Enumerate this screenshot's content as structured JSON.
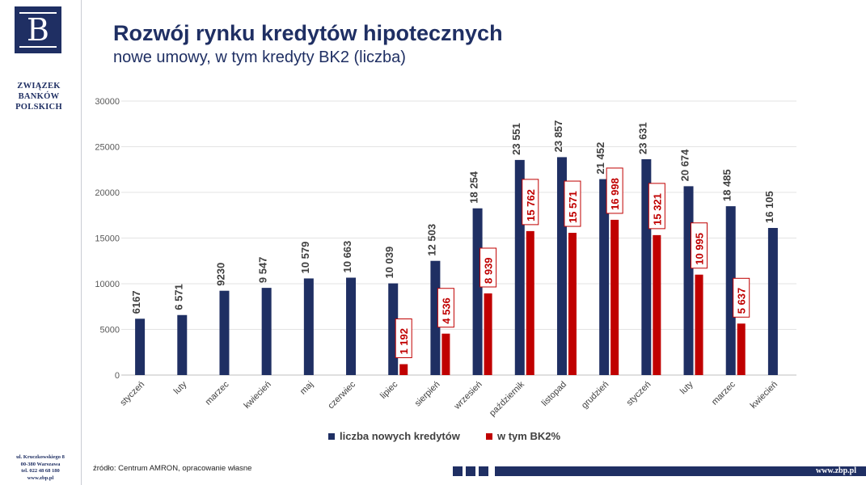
{
  "brand": {
    "logo_letter": "B",
    "name_lines": [
      "ZWIĄZEK",
      "BANKÓW",
      "POLSKICH"
    ],
    "address_lines": [
      "ul. Kruczkowskiego 8",
      "00-380 Warszawa",
      "tel. 022 48 68 180",
      "www.zbp.pl"
    ],
    "accent_color": "#1f2f63"
  },
  "header": {
    "title": "Rozwój rynku kredytów hipotecznych",
    "subtitle": "nowe umowy, w tym kredyty BK2 (liczba)"
  },
  "footer": {
    "source": "źródło: Centrum AMRON, opracowanie własne",
    "url": "www.zbp.pl"
  },
  "chart_data": {
    "type": "bar",
    "categories": [
      "styczeń",
      "luty",
      "marzec",
      "kwiecień",
      "maj",
      "czerwiec",
      "lipiec",
      "sierpień",
      "wrzesień",
      "październik",
      "listopad",
      "grudzień",
      "styczeń",
      "luty",
      "marzec",
      "kwiecień"
    ],
    "series": [
      {
        "name": "liczba nowych kredytów",
        "color": "#1f2f63",
        "values": [
          6167,
          6571,
          9230,
          9547,
          10579,
          10663,
          10039,
          12503,
          18254,
          23551,
          23857,
          21452,
          23631,
          20674,
          18485,
          16105
        ],
        "labels": [
          "6167",
          "6 571",
          "9230",
          "9 547",
          "10 579",
          "10 663",
          "10 039",
          "12 503",
          "18 254",
          "23 551",
          "23 857",
          "21 452",
          "23 631",
          "20 674",
          "18 485",
          "16 105"
        ]
      },
      {
        "name": "w tym BK2%",
        "color": "#c00000",
        "values": [
          null,
          null,
          null,
          null,
          null,
          null,
          1192,
          4536,
          8939,
          15762,
          15571,
          16998,
          15321,
          10995,
          5637,
          null
        ],
        "labels": [
          null,
          null,
          null,
          null,
          null,
          null,
          "1 192",
          "4 536",
          "8 939",
          "15 762",
          "15 571",
          "16 998",
          "15 321",
          "10 995",
          "5 637",
          null
        ]
      }
    ],
    "y_ticks": [
      0,
      5000,
      10000,
      15000,
      20000,
      25000,
      30000
    ],
    "ylim": [
      0,
      30000
    ],
    "grid": true,
    "legend": "bottom"
  }
}
